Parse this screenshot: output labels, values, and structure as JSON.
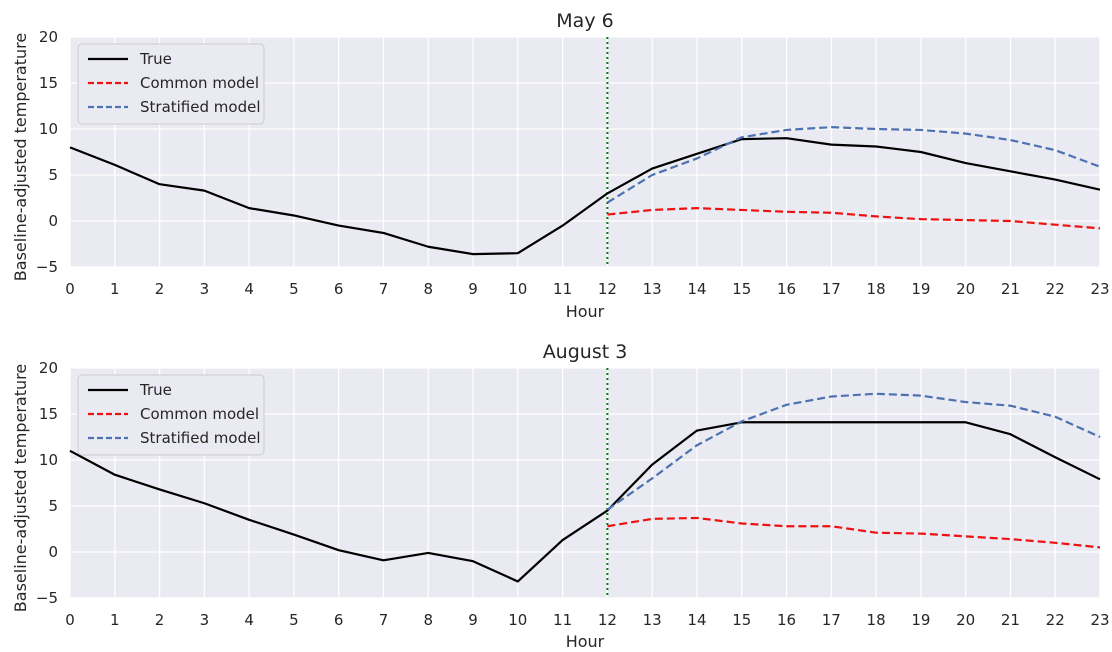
{
  "chart_data": [
    {
      "type": "line",
      "title": "May 6",
      "xlabel": "Hour",
      "ylabel": "Baseline-adjusted temperature",
      "xlim": [
        0,
        23
      ],
      "ylim": [
        -5,
        20
      ],
      "xticks": [
        0,
        1,
        2,
        3,
        4,
        5,
        6,
        7,
        8,
        9,
        10,
        11,
        12,
        13,
        14,
        15,
        16,
        17,
        18,
        19,
        20,
        21,
        22,
        23
      ],
      "yticks": [
        -5,
        0,
        5,
        10,
        15,
        20
      ],
      "grid": true,
      "legend": "top-left",
      "vline": {
        "x": 12,
        "color": "#008000",
        "style": "dotted"
      },
      "series": [
        {
          "name": "True",
          "color": "#000000",
          "dash": "solid",
          "x": [
            0,
            1,
            2,
            3,
            4,
            5,
            6,
            7,
            8,
            9,
            10,
            11,
            12,
            13,
            14,
            15,
            16,
            17,
            18,
            19,
            20,
            21,
            22,
            23
          ],
          "y": [
            8.0,
            6.1,
            4.0,
            3.3,
            1.4,
            0.6,
            -0.5,
            -1.3,
            -2.8,
            -3.6,
            -3.5,
            -0.5,
            3.0,
            5.7,
            7.3,
            8.9,
            9.0,
            8.3,
            8.1,
            7.5,
            6.3,
            5.4,
            4.5,
            3.4
          ]
        },
        {
          "name": "Common model",
          "color": "#ee1111",
          "dash": "dashed",
          "x": [
            12,
            13,
            14,
            15,
            16,
            17,
            18,
            19,
            20,
            21,
            22,
            23
          ],
          "y": [
            0.7,
            1.2,
            1.4,
            1.2,
            1.0,
            0.9,
            0.5,
            0.2,
            0.1,
            0.0,
            -0.4,
            -0.8
          ]
        },
        {
          "name": "Stratified model",
          "color": "#4c72b0",
          "dash": "dashed",
          "x": [
            12,
            13,
            14,
            15,
            16,
            17,
            18,
            19,
            20,
            21,
            22,
            23
          ],
          "y": [
            2.0,
            5.0,
            6.8,
            9.1,
            9.9,
            10.2,
            10.0,
            9.9,
            9.5,
            8.8,
            7.7,
            5.9
          ]
        }
      ]
    },
    {
      "type": "line",
      "title": "August 3",
      "xlabel": "Hour",
      "ylabel": "Baseline-adjusted temperature",
      "xlim": [
        0,
        23
      ],
      "ylim": [
        -5,
        20
      ],
      "xticks": [
        0,
        1,
        2,
        3,
        4,
        5,
        6,
        7,
        8,
        9,
        10,
        11,
        12,
        13,
        14,
        15,
        16,
        17,
        18,
        19,
        20,
        21,
        22,
        23
      ],
      "yticks": [
        -5,
        0,
        5,
        10,
        15,
        20
      ],
      "grid": true,
      "legend": "top-left",
      "vline": {
        "x": 12,
        "color": "#008000",
        "style": "dotted"
      },
      "series": [
        {
          "name": "True",
          "color": "#000000",
          "dash": "solid",
          "x": [
            0,
            1,
            2,
            3,
            4,
            5,
            6,
            7,
            8,
            9,
            10,
            11,
            12,
            13,
            14,
            15,
            16,
            17,
            18,
            19,
            20,
            21,
            22,
            23
          ],
          "y": [
            11.0,
            8.4,
            6.8,
            5.3,
            3.5,
            1.9,
            0.2,
            -0.9,
            -0.1,
            -1.0,
            -3.2,
            1.3,
            4.5,
            9.5,
            13.2,
            14.1,
            14.1,
            14.1,
            14.1,
            14.1,
            14.1,
            12.8,
            10.3,
            7.9
          ]
        },
        {
          "name": "Common model",
          "color": "#ee1111",
          "dash": "dashed",
          "x": [
            12,
            13,
            14,
            15,
            16,
            17,
            18,
            19,
            20,
            21,
            22,
            23
          ],
          "y": [
            2.8,
            3.6,
            3.7,
            3.1,
            2.8,
            2.8,
            2.1,
            2.0,
            1.7,
            1.4,
            1.0,
            0.5
          ]
        },
        {
          "name": "Stratified model",
          "color": "#4c72b0",
          "dash": "dashed",
          "x": [
            12,
            13,
            14,
            15,
            16,
            17,
            18,
            19,
            20,
            21,
            22,
            23
          ],
          "y": [
            4.6,
            8.0,
            11.6,
            14.2,
            16.0,
            16.9,
            17.2,
            17.0,
            16.3,
            15.9,
            14.7,
            12.5
          ]
        }
      ]
    }
  ]
}
